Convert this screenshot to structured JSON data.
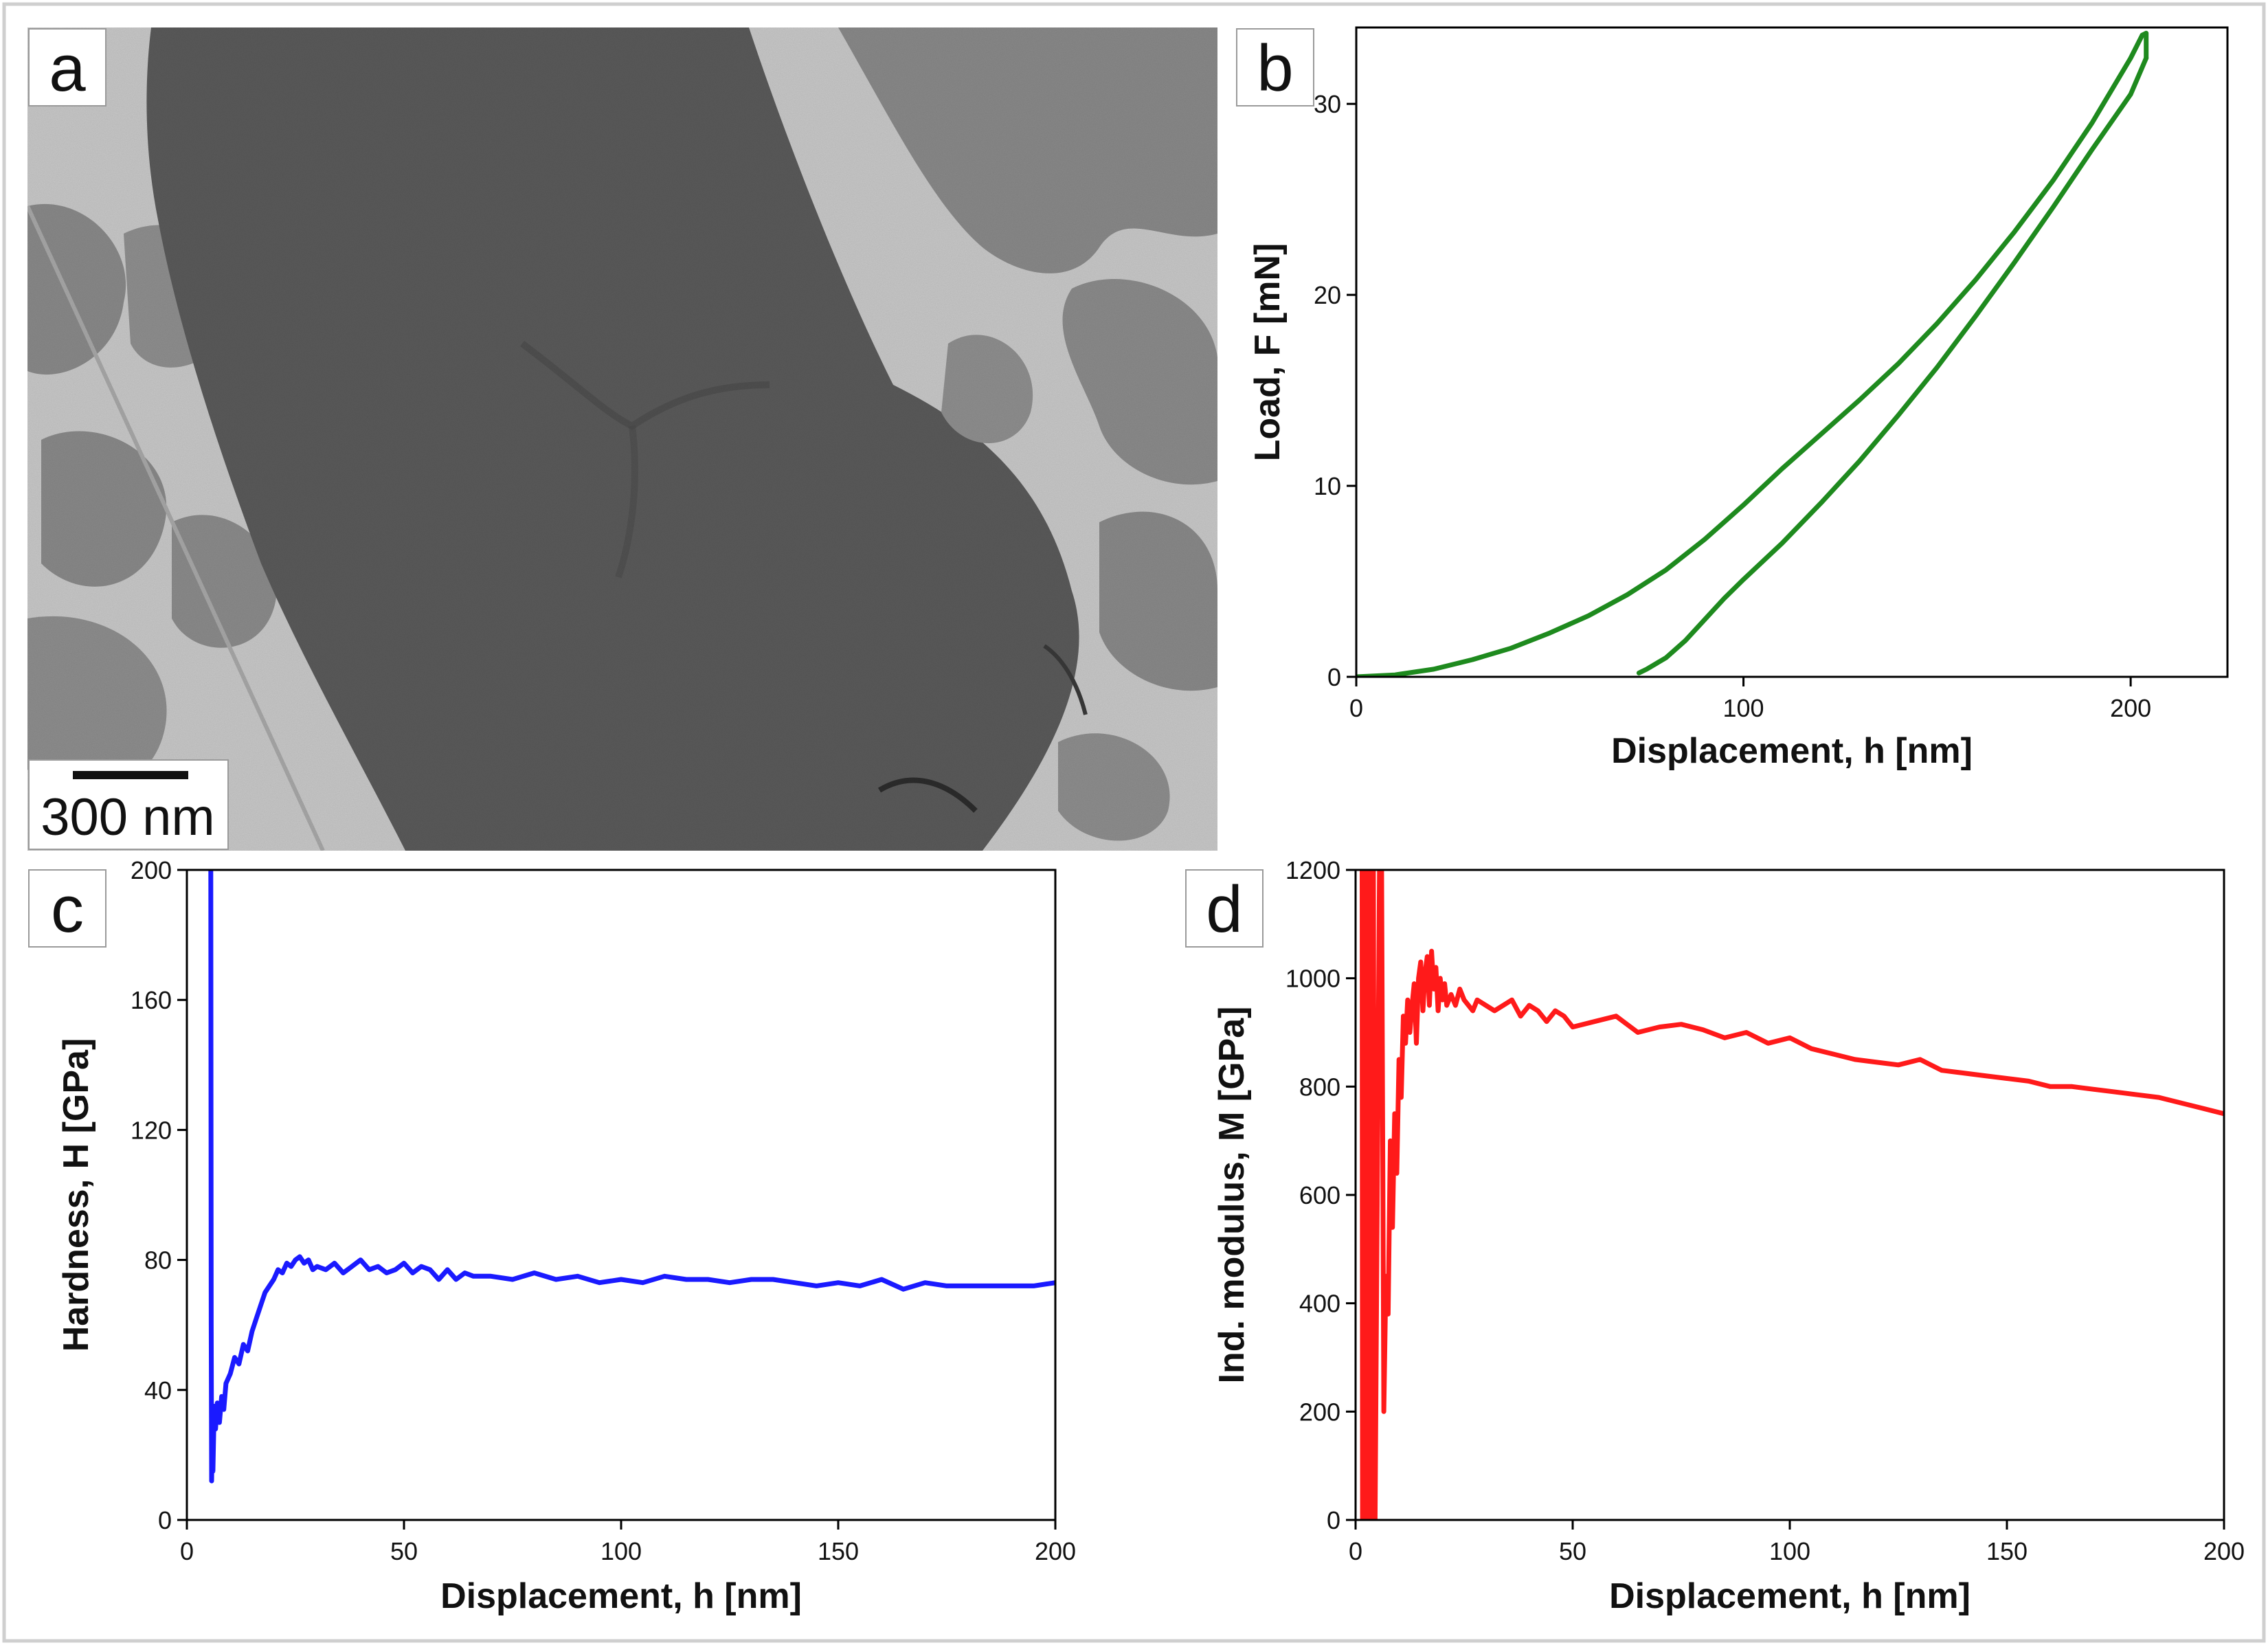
{
  "panel_a": {
    "label": "a",
    "scale_bar_text": "300 nm",
    "image_description_colors": {
      "dark_grain": "#5c5c5c",
      "mid_phase": "#8a8a8a",
      "light_phase": "#c9c9c9"
    }
  },
  "chart_data": [
    {
      "id": "b",
      "type": "line",
      "label": "b",
      "title": "",
      "xlabel": "Displacement, h  [nm]",
      "ylabel": "Load, F  [mN]",
      "xlim": [
        0,
        225
      ],
      "ylim": [
        0,
        34
      ],
      "xticks": [
        0,
        100,
        200
      ],
      "yticks": [
        0,
        10,
        20,
        30
      ],
      "color": "#1e8a1e",
      "series": [
        {
          "name": "loading",
          "x": [
            0,
            10,
            20,
            30,
            40,
            50,
            60,
            70,
            80,
            90,
            100,
            110,
            120,
            130,
            140,
            150,
            160,
            170,
            180,
            190,
            200,
            203
          ],
          "y": [
            0,
            0.1,
            0.4,
            0.9,
            1.5,
            2.3,
            3.2,
            4.3,
            5.6,
            7.2,
            9.0,
            10.9,
            12.7,
            14.5,
            16.4,
            18.5,
            20.8,
            23.3,
            26.0,
            29.0,
            32.4,
            33.6
          ]
        },
        {
          "name": "hold",
          "x": [
            203,
            204,
            204
          ],
          "y": [
            33.6,
            33.7,
            32.4
          ]
        },
        {
          "name": "unloading",
          "x": [
            204,
            200,
            190,
            180,
            170,
            160,
            150,
            140,
            130,
            120,
            110,
            100,
            95,
            90,
            85,
            80,
            75,
            73
          ],
          "y": [
            32.4,
            30.5,
            27.6,
            24.6,
            21.7,
            18.9,
            16.2,
            13.7,
            11.3,
            9.1,
            7.0,
            5.1,
            4.1,
            3.0,
            1.9,
            1.0,
            0.4,
            0.2
          ]
        }
      ]
    },
    {
      "id": "c",
      "type": "line",
      "label": "c",
      "title": "",
      "xlabel": "Displacement, h  [nm]",
      "ylabel": "Hardness, H  [GPa]",
      "xlim": [
        0,
        200
      ],
      "ylim": [
        0,
        200
      ],
      "xticks": [
        0,
        50,
        100,
        150,
        200
      ],
      "yticks": [
        0,
        40,
        80,
        120,
        160,
        200
      ],
      "color": "#1a1aff",
      "series": [
        {
          "name": "hardness",
          "x": [
            5.5,
            5.6,
            5.7,
            5.8,
            6,
            6.3,
            6.6,
            7,
            7.5,
            8,
            8.5,
            9,
            10,
            11,
            12,
            13,
            14,
            15,
            16,
            17,
            18,
            19,
            20,
            21,
            22,
            23,
            24,
            25,
            26,
            27,
            28,
            29,
            30,
            32,
            34,
            36,
            38,
            40,
            42,
            44,
            46,
            48,
            50,
            52,
            54,
            56,
            58,
            60,
            62,
            64,
            66,
            70,
            75,
            80,
            85,
            90,
            95,
            100,
            105,
            110,
            115,
            120,
            125,
            130,
            135,
            140,
            145,
            150,
            155,
            160,
            165,
            170,
            175,
            180,
            185,
            190,
            195,
            200
          ],
          "y": [
            200,
            60,
            12,
            22,
            15,
            35,
            28,
            36,
            30,
            38,
            34,
            42,
            45,
            50,
            48,
            54,
            52,
            58,
            62,
            66,
            70,
            72,
            74,
            77,
            76,
            79,
            78,
            80,
            81,
            79,
            80,
            77,
            78,
            77,
            79,
            76,
            78,
            80,
            77,
            78,
            76,
            77,
            79,
            76,
            78,
            77,
            74,
            77,
            74,
            76,
            75,
            75,
            74,
            76,
            74,
            75,
            73,
            74,
            73,
            75,
            74,
            74,
            73,
            74,
            74,
            73,
            72,
            73,
            72,
            74,
            71,
            73,
            72,
            72,
            72,
            72,
            72,
            73
          ]
        }
      ]
    },
    {
      "id": "d",
      "type": "line",
      "label": "d",
      "title": "",
      "xlabel": "Displacement, h  [nm]",
      "ylabel": "Ind. modulus, M  [GPa]",
      "xlim": [
        0,
        200
      ],
      "ylim": [
        0,
        1200
      ],
      "xticks": [
        0,
        50,
        100,
        150,
        200
      ],
      "yticks": [
        0,
        200,
        400,
        600,
        800,
        1000,
        1200
      ],
      "color": "#ff1a1a",
      "series": [
        {
          "name": "modulus",
          "x": [
            1.5,
            1.6,
            2.0,
            2.1,
            2.5,
            2.6,
            3.0,
            3.1,
            3.5,
            3.6,
            4.0,
            4.1,
            4.5,
            5,
            5.5,
            6,
            6.5,
            7,
            7.5,
            8,
            8.5,
            9,
            9.5,
            10,
            10.5,
            11,
            11.5,
            12,
            12.5,
            13,
            13.5,
            14,
            14.5,
            15,
            15.5,
            16,
            16.5,
            17,
            17.5,
            18,
            18.5,
            19,
            19.5,
            20,
            20.5,
            21,
            22,
            23,
            24,
            25,
            26,
            27,
            28,
            30,
            32,
            34,
            36,
            38,
            40,
            42,
            44,
            46,
            48,
            50,
            55,
            60,
            65,
            70,
            75,
            80,
            85,
            90,
            95,
            100,
            105,
            110,
            115,
            120,
            125,
            130,
            135,
            140,
            145,
            150,
            155,
            160,
            165,
            170,
            175,
            180,
            185,
            190,
            195,
            200
          ],
          "y": [
            1200,
            0,
            0,
            1200,
            1200,
            0,
            0,
            1200,
            1200,
            0,
            0,
            1200,
            0,
            600,
            1200,
            1200,
            200,
            450,
            380,
            700,
            540,
            750,
            640,
            850,
            780,
            930,
            880,
            960,
            900,
            950,
            990,
            880,
            1000,
            1030,
            940,
            1010,
            1040,
            950,
            1050,
            980,
            1020,
            940,
            1000,
            960,
            990,
            950,
            970,
            950,
            980,
            960,
            950,
            940,
            960,
            950,
            940,
            950,
            960,
            930,
            950,
            940,
            920,
            940,
            930,
            910,
            920,
            930,
            900,
            910,
            915,
            905,
            890,
            900,
            880,
            890,
            870,
            860,
            850,
            845,
            840,
            850,
            830,
            825,
            820,
            815,
            810,
            800,
            800,
            795,
            790,
            785,
            780,
            770,
            760,
            750
          ]
        }
      ]
    }
  ]
}
